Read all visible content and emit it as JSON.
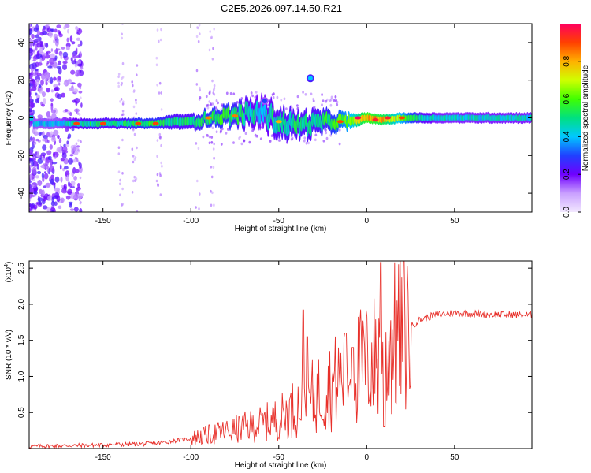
{
  "title": "C2E5.2026.097.14.50.R21",
  "chart_data": [
    {
      "type": "heatmap",
      "name": "spectrogram",
      "xlabel": "Height of straight line (km)",
      "ylabel": "Frequency (Hz)",
      "xlim": [
        -192,
        94
      ],
      "ylim": [
        -50,
        50
      ],
      "xticks": [
        -150,
        -100,
        -50,
        0,
        50
      ],
      "yticks": [
        -40,
        -20,
        0,
        20,
        40
      ],
      "colorbar": {
        "label": "Normalized spectral amplitude",
        "range": [
          0,
          1
        ],
        "ticks": [
          "0.0",
          "0.2",
          "0.4",
          "0.6",
          "0.8"
        ],
        "colors": [
          "#f2e8ff",
          "#c9a0ff",
          "#6f00ff",
          "#2040ff",
          "#00c8ff",
          "#00e080",
          "#40ff00",
          "#d0ff00",
          "#ffb000",
          "#ff4000",
          "#ff0060"
        ]
      },
      "ridge": [
        {
          "x": -190,
          "f": -3,
          "w": 2,
          "a": 0.45
        },
        {
          "x": -180,
          "f": -3,
          "w": 2,
          "a": 0.45
        },
        {
          "x": -170,
          "f": -3,
          "w": 2,
          "a": 0.5
        },
        {
          "x": -160,
          "f": -3,
          "w": 2,
          "a": 0.55
        },
        {
          "x": -150,
          "f": -3,
          "w": 2,
          "a": 0.55
        },
        {
          "x": -140,
          "f": -3,
          "w": 2,
          "a": 0.55
        },
        {
          "x": -130,
          "f": -3,
          "w": 2,
          "a": 0.6
        },
        {
          "x": -120,
          "f": -3,
          "w": 2,
          "a": 0.6
        },
        {
          "x": -110,
          "f": -2,
          "w": 3,
          "a": 0.55
        },
        {
          "x": -100,
          "f": -2,
          "w": 3,
          "a": 0.55
        },
        {
          "x": -90,
          "f": 0,
          "w": 3,
          "a": 0.6
        },
        {
          "x": -80,
          "f": 1,
          "w": 4,
          "a": 0.6
        },
        {
          "x": -70,
          "f": 2,
          "w": 5,
          "a": 0.55
        },
        {
          "x": -60,
          "f": 3,
          "w": 6,
          "a": 0.5
        },
        {
          "x": -50,
          "f": -2,
          "w": 6,
          "a": 0.55
        },
        {
          "x": -40,
          "f": -4,
          "w": 5,
          "a": 0.55
        },
        {
          "x": -30,
          "f": -3,
          "w": 5,
          "a": 0.55
        },
        {
          "x": -20,
          "f": -2,
          "w": 4,
          "a": 0.6
        },
        {
          "x": -10,
          "f": -2,
          "w": 3,
          "a": 0.7
        },
        {
          "x": 0,
          "f": 0,
          "w": 2,
          "a": 0.9
        },
        {
          "x": 10,
          "f": -1,
          "w": 2,
          "a": 0.85
        },
        {
          "x": 20,
          "f": 0,
          "w": 2,
          "a": 0.7
        },
        {
          "x": 30,
          "f": 0,
          "w": 2,
          "a": 0.55
        },
        {
          "x": 40,
          "f": 0,
          "w": 2,
          "a": 0.5
        },
        {
          "x": 50,
          "f": 0,
          "w": 2,
          "a": 0.5
        },
        {
          "x": 60,
          "f": 0,
          "w": 2,
          "a": 0.5
        },
        {
          "x": 70,
          "f": 0,
          "w": 2,
          "a": 0.5
        },
        {
          "x": 80,
          "f": 0,
          "w": 2,
          "a": 0.5
        },
        {
          "x": 94,
          "f": 0,
          "w": 2,
          "a": 0.5
        }
      ],
      "bright_spots": [
        {
          "x": -165,
          "f": -3,
          "a": 0.9
        },
        {
          "x": -150,
          "f": -3,
          "a": 0.9
        },
        {
          "x": -130,
          "f": -3,
          "a": 0.9
        },
        {
          "x": -120,
          "f": -3,
          "a": 0.9
        },
        {
          "x": -90,
          "f": 0,
          "a": 0.85
        },
        {
          "x": -75,
          "f": 1,
          "a": 0.85
        },
        {
          "x": -50,
          "f": -2,
          "a": 0.8
        },
        {
          "x": -15,
          "f": -2,
          "a": 0.9
        },
        {
          "x": -5,
          "f": 0,
          "a": 1.0
        },
        {
          "x": 5,
          "f": -1,
          "a": 0.95
        },
        {
          "x": 12,
          "f": 0,
          "a": 0.95
        },
        {
          "x": 20,
          "f": 0,
          "a": 0.9
        }
      ],
      "side_features": [
        {
          "x": -32,
          "f": 21,
          "a": 0.4
        },
        {
          "x": -58,
          "f": 9,
          "a": 0.3
        }
      ]
    },
    {
      "type": "line",
      "name": "snr",
      "xlabel": "Height of straight line (km)",
      "ylabel": "SNR (10 * v/v)",
      "scale_label": "(x10",
      "scale_exp": "4",
      "scale_close": ")",
      "xlim": [
        -192,
        94
      ],
      "ylim": [
        0,
        2.6
      ],
      "xticks": [
        -150,
        -100,
        -50,
        0,
        50
      ],
      "yticks": [
        "0.5",
        "1.0",
        "1.5",
        "2.0",
        "2.5"
      ],
      "color": "#e8302a",
      "envelope": [
        {
          "x": -192,
          "y": 0.03
        },
        {
          "x": -150,
          "y": 0.05
        },
        {
          "x": -120,
          "y": 0.07
        },
        {
          "x": -100,
          "y": 0.14
        },
        {
          "x": -80,
          "y": 0.24
        },
        {
          "x": -60,
          "y": 0.34
        },
        {
          "x": -50,
          "y": 0.42
        },
        {
          "x": -40,
          "y": 0.58
        },
        {
          "x": -30,
          "y": 0.72
        },
        {
          "x": -20,
          "y": 0.88
        },
        {
          "x": -10,
          "y": 1.05
        },
        {
          "x": 0,
          "y": 1.18
        },
        {
          "x": 10,
          "y": 1.35
        },
        {
          "x": 20,
          "y": 1.6
        },
        {
          "x": 30,
          "y": 1.78
        },
        {
          "x": 40,
          "y": 1.86
        },
        {
          "x": 50,
          "y": 1.88
        },
        {
          "x": 70,
          "y": 1.86
        },
        {
          "x": 94,
          "y": 1.85
        }
      ],
      "spikes": [
        {
          "x": -36,
          "y": 1.92
        },
        {
          "x": -34,
          "y": 1.55
        },
        {
          "x": -12,
          "y": 1.6
        },
        {
          "x": -8,
          "y": 1.4
        },
        {
          "x": 8,
          "y": 2.58
        },
        {
          "x": 10,
          "y": 0.3
        }
      ]
    }
  ]
}
